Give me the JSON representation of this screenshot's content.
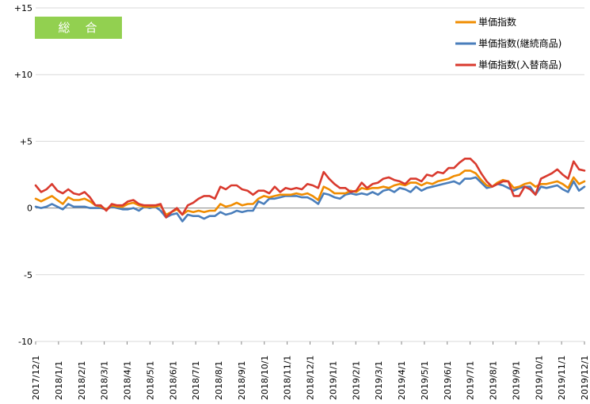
{
  "chart_data": {
    "type": "line",
    "badge": "総　合",
    "badge_color": "#92d050",
    "ylim": [
      -10,
      15
    ],
    "yticks": [
      -10,
      -5,
      0,
      5,
      10,
      15
    ],
    "ytick_labels": [
      "-10",
      "-5",
      "0",
      "+5",
      "+10",
      "+15"
    ],
    "xtick_labels": [
      "2017/12/1",
      "2018/1/1",
      "2018/2/1",
      "2018/3/1",
      "2018/4/1",
      "2018/5/1",
      "2018/6/1",
      "2018/7/1",
      "2018/8/1",
      "2018/9/1",
      "2018/10/1",
      "2018/11/1",
      "2018/12/1",
      "2019/1/1",
      "2019/2/1",
      "2019/3/1",
      "2019/4/1",
      "2019/5/1",
      "2019/6/1",
      "2019/7/1",
      "2019/8/1",
      "2019/9/1",
      "2019/10/1",
      "2019/11/1",
      "2019/12/1"
    ],
    "grid": "horizontal",
    "legend_position": "top-right",
    "series": [
      {
        "name": "単価指数",
        "color": "#f08c00",
        "values": [
          0.7,
          0.5,
          0.7,
          0.9,
          0.6,
          0.3,
          0.8,
          0.6,
          0.6,
          0.7,
          0.5,
          0.2,
          0.1,
          -0.1,
          0.2,
          0.1,
          0.1,
          0.3,
          0.4,
          0.2,
          0.1,
          0.1,
          0.1,
          0.2,
          -0.5,
          -0.3,
          -0.1,
          -0.5,
          -0.2,
          -0.3,
          -0.2,
          -0.3,
          -0.2,
          -0.2,
          0.3,
          0.1,
          0.2,
          0.4,
          0.2,
          0.3,
          0.3,
          0.7,
          0.9,
          0.8,
          0.9,
          1.0,
          1.0,
          1.0,
          1.1,
          1.0,
          1.1,
          0.9,
          0.6,
          1.6,
          1.4,
          1.1,
          1.1,
          1.1,
          1.3,
          1.2,
          1.5,
          1.4,
          1.5,
          1.5,
          1.6,
          1.5,
          1.7,
          1.8,
          1.7,
          1.9,
          1.9,
          1.7,
          1.9,
          1.8,
          2.0,
          2.1,
          2.2,
          2.4,
          2.5,
          2.8,
          2.8,
          2.6,
          2.1,
          1.7,
          1.6,
          1.9,
          2.1,
          2.0,
          1.5,
          1.6,
          1.8,
          1.9,
          1.6,
          1.8,
          1.8,
          1.9,
          2.0,
          1.8,
          1.5,
          2.3,
          1.8,
          2.0
        ]
      },
      {
        "name": "単価指数(継続商品)",
        "color": "#4a7ebb",
        "values": [
          0.1,
          0.0,
          0.1,
          0.3,
          0.1,
          -0.1,
          0.3,
          0.1,
          0.1,
          0.1,
          0.0,
          0.0,
          0.0,
          -0.1,
          0.1,
          0.0,
          -0.1,
          -0.1,
          0.0,
          -0.2,
          0.1,
          0.0,
          0.1,
          -0.2,
          -0.7,
          -0.5,
          -0.4,
          -1.0,
          -0.5,
          -0.6,
          -0.6,
          -0.8,
          -0.6,
          -0.6,
          -0.3,
          -0.5,
          -0.4,
          -0.2,
          -0.3,
          -0.2,
          -0.2,
          0.5,
          0.3,
          0.7,
          0.7,
          0.8,
          0.9,
          0.9,
          0.9,
          0.8,
          0.8,
          0.6,
          0.3,
          1.1,
          1.0,
          0.8,
          0.7,
          1.0,
          1.1,
          1.0,
          1.1,
          1.0,
          1.2,
          1.0,
          1.3,
          1.4,
          1.2,
          1.5,
          1.4,
          1.2,
          1.6,
          1.3,
          1.5,
          1.6,
          1.7,
          1.8,
          1.9,
          2.0,
          1.8,
          2.2,
          2.2,
          2.3,
          1.9,
          1.5,
          1.6,
          1.8,
          1.7,
          1.5,
          1.3,
          1.5,
          1.6,
          1.6,
          1.0,
          1.6,
          1.5,
          1.6,
          1.7,
          1.4,
          1.2,
          2.0,
          1.3,
          1.6
        ]
      },
      {
        "name": "単価指数(入替商品)",
        "color": "#d93a2e",
        "values": [
          1.7,
          1.2,
          1.4,
          1.8,
          1.3,
          1.1,
          1.4,
          1.1,
          1.0,
          1.2,
          0.8,
          0.2,
          0.2,
          -0.2,
          0.3,
          0.2,
          0.2,
          0.5,
          0.6,
          0.3,
          0.2,
          0.2,
          0.2,
          0.3,
          -0.7,
          -0.3,
          0.0,
          -0.5,
          0.2,
          0.4,
          0.7,
          0.9,
          0.9,
          0.7,
          1.6,
          1.4,
          1.7,
          1.7,
          1.4,
          1.3,
          1.0,
          1.3,
          1.3,
          1.1,
          1.6,
          1.2,
          1.5,
          1.4,
          1.5,
          1.4,
          1.8,
          1.7,
          1.5,
          2.7,
          2.2,
          1.8,
          1.5,
          1.5,
          1.2,
          1.3,
          1.9,
          1.5,
          1.8,
          1.9,
          2.2,
          2.3,
          2.1,
          2.0,
          1.8,
          2.2,
          2.2,
          2.0,
          2.5,
          2.4,
          2.7,
          2.6,
          3.0,
          3.0,
          3.4,
          3.7,
          3.7,
          3.3,
          2.6,
          2.0,
          1.6,
          1.8,
          2.0,
          2.0,
          0.9,
          0.9,
          1.6,
          1.4,
          1.0,
          2.2,
          2.4,
          2.6,
          2.9,
          2.5,
          2.2,
          3.5,
          2.9,
          2.8
        ]
      }
    ]
  }
}
